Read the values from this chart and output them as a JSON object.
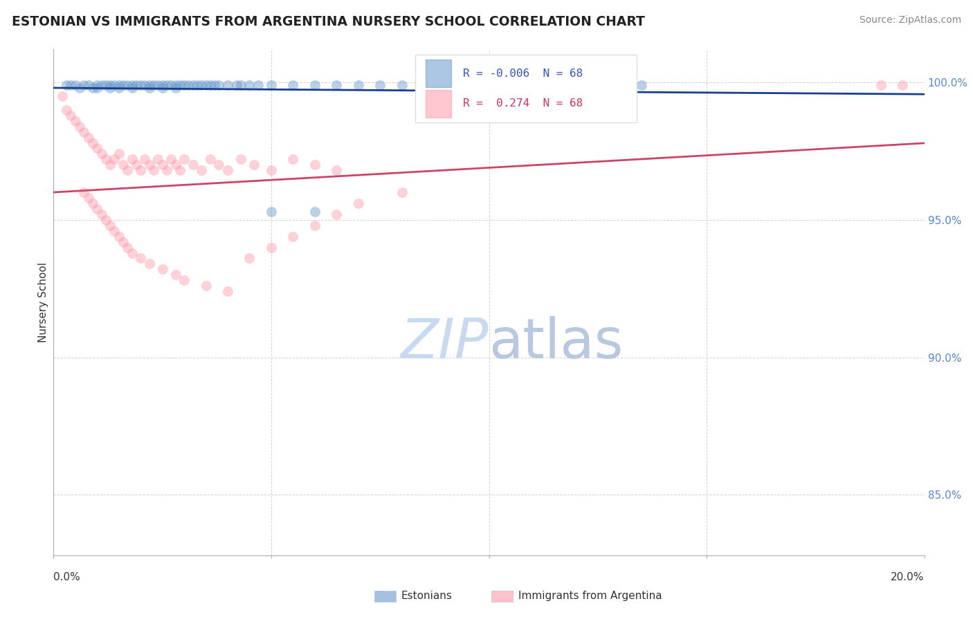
{
  "title": "ESTONIAN VS IMMIGRANTS FROM ARGENTINA NURSERY SCHOOL CORRELATION CHART",
  "source": "Source: ZipAtlas.com",
  "ylabel": "Nursery School",
  "ytick_values": [
    0.85,
    0.9,
    0.95,
    1.0
  ],
  "xlim": [
    0.0,
    0.2
  ],
  "ylim": [
    0.828,
    1.012
  ],
  "r_estonian": -0.006,
  "n_estonian": 68,
  "r_argentina": 0.274,
  "n_argentina": 68,
  "blue_scatter_color": "#6699CC",
  "pink_scatter_color": "#FF99AA",
  "blue_line_color": "#1a3e8c",
  "pink_line_color": "#cc4466",
  "legend_r_blue": "#3355bb",
  "legend_r_pink": "#cc3366",
  "watermark_color": "#c8daf0",
  "grid_color": "#cccccc",
  "title_color": "#222222",
  "right_tick_color": "#5588cc",
  "estonian_x": [
    0.003,
    0.004,
    0.005,
    0.006,
    0.007,
    0.008,
    0.009,
    0.01,
    0.01,
    0.011,
    0.012,
    0.013,
    0.013,
    0.014,
    0.015,
    0.015,
    0.016,
    0.017,
    0.018,
    0.018,
    0.019,
    0.02,
    0.021,
    0.022,
    0.022,
    0.023,
    0.024,
    0.025,
    0.025,
    0.026,
    0.027,
    0.028,
    0.028,
    0.029,
    0.03,
    0.031,
    0.032,
    0.033,
    0.034,
    0.035,
    0.036,
    0.037,
    0.038,
    0.04,
    0.042,
    0.043,
    0.045,
    0.047,
    0.05,
    0.055,
    0.06,
    0.065,
    0.07,
    0.075,
    0.08,
    0.085,
    0.09,
    0.095,
    0.1,
    0.105,
    0.11,
    0.115,
    0.12,
    0.125,
    0.13,
    0.135,
    0.05,
    0.06
  ],
  "estonian_y": [
    0.999,
    0.999,
    0.999,
    0.998,
    0.999,
    0.999,
    0.998,
    0.999,
    0.998,
    0.999,
    0.999,
    0.999,
    0.998,
    0.999,
    0.999,
    0.998,
    0.999,
    0.999,
    0.999,
    0.998,
    0.999,
    0.999,
    0.999,
    0.999,
    0.998,
    0.999,
    0.999,
    0.999,
    0.998,
    0.999,
    0.999,
    0.999,
    0.998,
    0.999,
    0.999,
    0.999,
    0.999,
    0.999,
    0.999,
    0.999,
    0.999,
    0.999,
    0.999,
    0.999,
    0.999,
    0.999,
    0.999,
    0.999,
    0.999,
    0.999,
    0.999,
    0.999,
    0.999,
    0.999,
    0.999,
    0.999,
    0.999,
    0.999,
    0.999,
    0.999,
    0.999,
    0.999,
    0.999,
    0.999,
    0.999,
    0.999,
    0.953,
    0.953
  ],
  "argentina_x": [
    0.002,
    0.003,
    0.004,
    0.005,
    0.006,
    0.007,
    0.008,
    0.009,
    0.01,
    0.011,
    0.012,
    0.013,
    0.014,
    0.015,
    0.016,
    0.017,
    0.018,
    0.019,
    0.02,
    0.021,
    0.022,
    0.023,
    0.024,
    0.025,
    0.026,
    0.027,
    0.028,
    0.029,
    0.03,
    0.032,
    0.034,
    0.036,
    0.038,
    0.04,
    0.043,
    0.046,
    0.05,
    0.055,
    0.06,
    0.065,
    0.007,
    0.008,
    0.009,
    0.01,
    0.011,
    0.012,
    0.013,
    0.014,
    0.015,
    0.016,
    0.017,
    0.018,
    0.02,
    0.022,
    0.025,
    0.028,
    0.03,
    0.035,
    0.04,
    0.045,
    0.05,
    0.055,
    0.06,
    0.065,
    0.07,
    0.08,
    0.19,
    0.195
  ],
  "argentina_y": [
    0.995,
    0.99,
    0.988,
    0.986,
    0.984,
    0.982,
    0.98,
    0.978,
    0.976,
    0.974,
    0.972,
    0.97,
    0.972,
    0.974,
    0.97,
    0.968,
    0.972,
    0.97,
    0.968,
    0.972,
    0.97,
    0.968,
    0.972,
    0.97,
    0.968,
    0.972,
    0.97,
    0.968,
    0.972,
    0.97,
    0.968,
    0.972,
    0.97,
    0.968,
    0.972,
    0.97,
    0.968,
    0.972,
    0.97,
    0.968,
    0.96,
    0.958,
    0.956,
    0.954,
    0.952,
    0.95,
    0.948,
    0.946,
    0.944,
    0.942,
    0.94,
    0.938,
    0.936,
    0.934,
    0.932,
    0.93,
    0.928,
    0.926,
    0.924,
    0.936,
    0.94,
    0.944,
    0.948,
    0.952,
    0.956,
    0.96,
    0.999,
    0.999
  ],
  "dot_size": 100
}
